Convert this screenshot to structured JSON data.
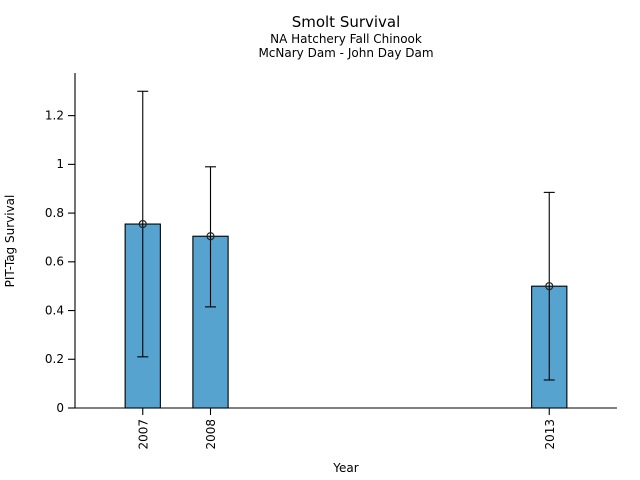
{
  "page": {
    "background": "#ffffff"
  },
  "chart_data": {
    "type": "bar",
    "title": "Smolt Survival",
    "subtitle_lines": [
      "NA Hatchery Fall Chinook",
      "McNary Dam - John Day Dam"
    ],
    "xlabel": "Year",
    "ylabel": "PIT-Tag Survival",
    "categories": [
      "2007",
      "2008",
      "2013"
    ],
    "x": [
      2007,
      2008,
      2013
    ],
    "values": [
      0.755,
      0.705,
      0.5
    ],
    "error_low": [
      0.21,
      0.415,
      0.115
    ],
    "error_high": [
      1.3,
      0.99,
      0.885
    ],
    "yticks": [
      0,
      0.2,
      0.4,
      0.6,
      0.8,
      1,
      1.2
    ],
    "ytick_labels": [
      "0",
      "0.2",
      "0.4",
      "0.6",
      "0.8",
      "1",
      "1.2"
    ],
    "xlim": [
      2006,
      2014
    ],
    "ylim": [
      0,
      1.375
    ],
    "bar_width_years": 0.52,
    "grid": false,
    "bar_color": "#57a3cf",
    "edge_color": "#000000",
    "marker": "open-circle",
    "marker_color": "#222222"
  }
}
